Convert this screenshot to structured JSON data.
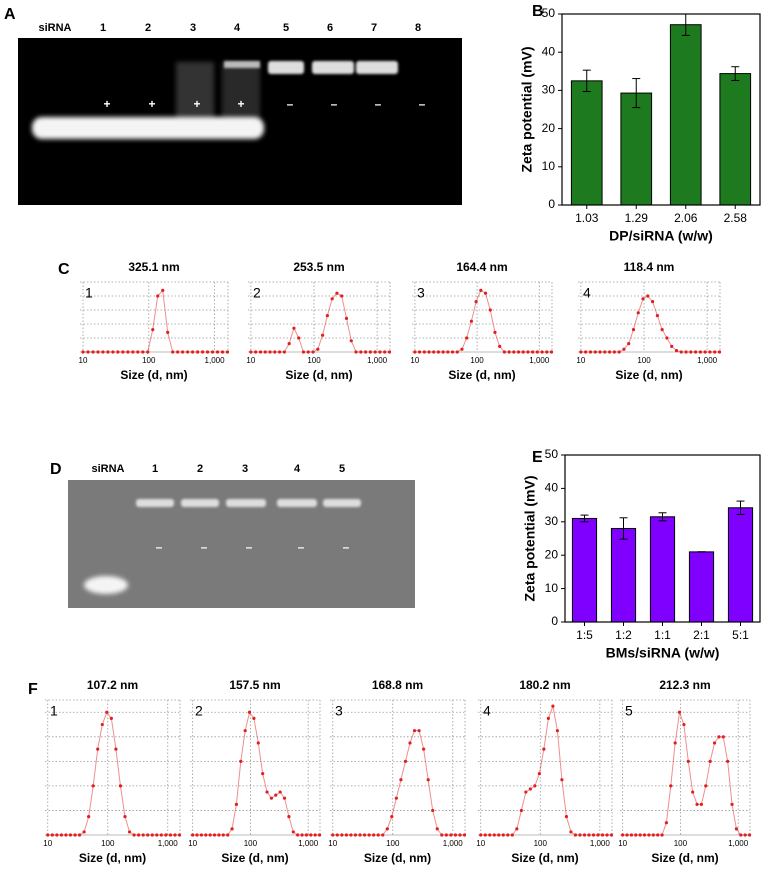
{
  "panel_labels": [
    "A",
    "B",
    "C",
    "D",
    "E",
    "F"
  ],
  "gel_a": {
    "lanes": [
      "siRNA",
      "1",
      "2",
      "3",
      "4",
      "5",
      "6",
      "7",
      "8"
    ],
    "charges": [
      "+",
      "+",
      "+",
      "+",
      "–",
      "–",
      "–",
      "–"
    ]
  },
  "gel_d": {
    "lanes": [
      "siRNA",
      "1",
      "2",
      "3",
      "4",
      "5"
    ],
    "charges": [
      "–",
      "–",
      "–",
      "–",
      "–"
    ]
  },
  "chart_data": [
    {
      "type": "bar",
      "categories": [
        "1.03",
        "1.29",
        "2.06",
        "2.58"
      ],
      "values": [
        32.5,
        29.3,
        47.2,
        34.4
      ],
      "errors": [
        2.8,
        3.8,
        2.8,
        1.8
      ],
      "color": "#1e7a1e",
      "ylabel": "Zeta potential (mV)",
      "xlabel": "DP/siRNA (w/w)",
      "ylim": [
        0,
        50
      ],
      "yticks": [
        0,
        10,
        20,
        30,
        40,
        50
      ]
    },
    {
      "type": "bar",
      "categories": [
        "1:5",
        "1:2",
        "1:1",
        "2:1",
        "5:1"
      ],
      "values": [
        31,
        28,
        31.5,
        21,
        34.2
      ],
      "errors": [
        1,
        3.2,
        1.2,
        0,
        2
      ],
      "color": "#8000ff",
      "ylabel": "Zeta potential (mV)",
      "xlabel": "BMs/siRNA (w/w)",
      "ylim": [
        0,
        50
      ],
      "yticks": [
        0,
        10,
        20,
        30,
        40,
        50
      ]
    },
    {
      "type": "line",
      "title": "325.1 nm",
      "annotation": "1",
      "xlabel": "Size (d, nm)",
      "xscale": "log",
      "xlim": [
        9,
        1600
      ],
      "xticks": [
        10,
        100,
        {
          "value": 1000,
          "label": "1,000"
        }
      ],
      "ylim": [
        0,
        25
      ],
      "yticks": [
        5,
        10,
        15,
        20
      ],
      "grid": true,
      "x": [
        10,
        11.9,
        14.2,
        16.9,
        20.1,
        23.9,
        28.5,
        33.9,
        40.4,
        48.1,
        57.2,
        68.1,
        81.1,
        96.5,
        114.9,
        136.8,
        162.9,
        193.9,
        230.8,
        274.8,
        327.1,
        389.5,
        463.6,
        552,
        657.1,
        782.3,
        931.3,
        1108.8,
        1320,
        1571.5
      ],
      "series": [
        {
          "color": "#e02020",
          "values": [
            0,
            0,
            0,
            0,
            0,
            0,
            0,
            0,
            0,
            0,
            0,
            0,
            0,
            0,
            8,
            20,
            22,
            7,
            0,
            0,
            0,
            0,
            0,
            0,
            0,
            0,
            0,
            0,
            0,
            0
          ]
        }
      ]
    },
    {
      "type": "line",
      "title": "253.5 nm",
      "annotation": "2",
      "xlabel": "Size (d, nm)",
      "xscale": "log",
      "xlim": [
        9,
        1600
      ],
      "xticks": [
        10,
        100,
        {
          "value": 1000,
          "label": "1,000"
        }
      ],
      "ylim": [
        0,
        25
      ],
      "yticks": [
        5,
        10,
        15,
        20
      ],
      "grid": true,
      "x": [
        10,
        11.9,
        14.2,
        16.9,
        20.1,
        23.9,
        28.5,
        33.9,
        40.4,
        48.1,
        57.2,
        68.1,
        81.1,
        96.5,
        114.9,
        136.8,
        162.9,
        193.9,
        230.8,
        274.8,
        327.1,
        389.5,
        463.6,
        552,
        657.1,
        782.3,
        931.3,
        1108.8,
        1320,
        1571.5
      ],
      "series": [
        {
          "color": "#e02020",
          "values": [
            0,
            0,
            0,
            0,
            0,
            0,
            0,
            0,
            3,
            8.5,
            5,
            0,
            0,
            0,
            1,
            6,
            13,
            19,
            21,
            20,
            12,
            4,
            0,
            0,
            0,
            0,
            0,
            0,
            0,
            0
          ]
        }
      ]
    },
    {
      "type": "line",
      "title": "164.4 nm",
      "annotation": "3",
      "xlabel": "Size (d, nm)",
      "xscale": "log",
      "xlim": [
        9,
        1600
      ],
      "xticks": [
        10,
        100,
        {
          "value": 1000,
          "label": "1,000"
        }
      ],
      "ylim": [
        0,
        25
      ],
      "yticks": [
        5,
        10,
        15,
        20
      ],
      "grid": true,
      "x": [
        10,
        11.9,
        14.2,
        16.9,
        20.1,
        23.9,
        28.5,
        33.9,
        40.4,
        48.1,
        57.2,
        68.1,
        81.1,
        96.5,
        114.9,
        136.8,
        162.9,
        193.9,
        230.8,
        274.8,
        327.1,
        389.5,
        463.6,
        552,
        657.1,
        782.3,
        931.3,
        1108.8,
        1320,
        1571.5
      ],
      "series": [
        {
          "color": "#e02020",
          "values": [
            0,
            0,
            0,
            0,
            0,
            0,
            0,
            0,
            0,
            0,
            1,
            5,
            11,
            18,
            22,
            21,
            15,
            7,
            2,
            0,
            0,
            0,
            0,
            0,
            0,
            0,
            0,
            0,
            0,
            0
          ]
        }
      ]
    },
    {
      "type": "line",
      "title": "118.4 nm",
      "annotation": "4",
      "xlabel": "Size (d, nm)",
      "xscale": "log",
      "xlim": [
        9,
        1600
      ],
      "xticks": [
        10,
        100,
        {
          "value": 1000,
          "label": "1,000"
        }
      ],
      "ylim": [
        0,
        25
      ],
      "yticks": [
        5,
        10,
        15,
        20
      ],
      "grid": true,
      "x": [
        10,
        11.9,
        14.2,
        16.9,
        20.1,
        23.9,
        28.5,
        33.9,
        40.4,
        48.1,
        57.2,
        68.1,
        81.1,
        96.5,
        114.9,
        136.8,
        162.9,
        193.9,
        230.8,
        274.8,
        327.1,
        389.5,
        463.6,
        552,
        657.1,
        782.3,
        931.3,
        1108.8,
        1320,
        1571.5
      ],
      "series": [
        {
          "color": "#e02020",
          "values": [
            0,
            0,
            0,
            0,
            0,
            0,
            0,
            0,
            0,
            1,
            3,
            8,
            14,
            19,
            20,
            18,
            13,
            8,
            5,
            2,
            0.5,
            0,
            0,
            0,
            0,
            0,
            0,
            0,
            0,
            0
          ]
        }
      ]
    },
    {
      "type": "line",
      "title": "107.2 nm",
      "annotation": "1",
      "xlabel": "Size (d, nm)",
      "xscale": "log",
      "xlim": [
        9,
        1600
      ],
      "xticks": [
        10,
        100,
        {
          "value": 1000,
          "label": "1,000"
        }
      ],
      "ylim": [
        0,
        22
      ],
      "yticks": [
        4,
        8,
        12,
        16,
        20
      ],
      "grid": true,
      "x": [
        10,
        11.9,
        14.2,
        16.9,
        20.1,
        23.9,
        28.5,
        33.9,
        40.4,
        48.1,
        57.2,
        68.1,
        81.1,
        96.5,
        114.9,
        136.8,
        162.9,
        193.9,
        230.8,
        274.8,
        327.1,
        389.5,
        463.6,
        552,
        657.1,
        782.3,
        931.3,
        1108.8,
        1320,
        1571.5
      ],
      "series": [
        {
          "color": "#e02020",
          "values": [
            0,
            0,
            0,
            0,
            0,
            0,
            0,
            0,
            0.5,
            3,
            8,
            14,
            18,
            20,
            19,
            14,
            8,
            3,
            0.5,
            0,
            0,
            0,
            0,
            0,
            0,
            0,
            0,
            0,
            0,
            0
          ]
        }
      ]
    },
    {
      "type": "line",
      "title": "157.5 nm",
      "annotation": "2",
      "xlabel": "Size (d, nm)",
      "xscale": "log",
      "xlim": [
        9,
        1600
      ],
      "xticks": [
        10,
        100,
        {
          "value": 1000,
          "label": "1,000"
        }
      ],
      "ylim": [
        0,
        22
      ],
      "yticks": [
        4,
        8,
        12,
        16,
        20
      ],
      "grid": true,
      "x": [
        10,
        11.9,
        14.2,
        16.9,
        20.1,
        23.9,
        28.5,
        33.9,
        40.4,
        48.1,
        57.2,
        68.1,
        81.1,
        96.5,
        114.9,
        136.8,
        162.9,
        193.9,
        230.8,
        274.8,
        327.1,
        389.5,
        463.6,
        552,
        657.1,
        782.3,
        931.3,
        1108.8,
        1320,
        1571.5
      ],
      "series": [
        {
          "color": "#e02020",
          "values": [
            0,
            0,
            0,
            0,
            0,
            0,
            0,
            0,
            0,
            1,
            5,
            12,
            17,
            20,
            19,
            15,
            10,
            7,
            6,
            6.5,
            7,
            6,
            3,
            0.5,
            0,
            0,
            0,
            0,
            0,
            0
          ]
        }
      ]
    },
    {
      "type": "line",
      "title": "168.8 nm",
      "annotation": "3",
      "xlabel": "Size (d, nm)",
      "xscale": "log",
      "xlim": [
        9,
        1600
      ],
      "xticks": [
        10,
        100,
        {
          "value": 1000,
          "label": "1,000"
        }
      ],
      "ylim": [
        0,
        22
      ],
      "yticks": [
        4,
        8,
        12,
        16,
        20
      ],
      "grid": true,
      "x": [
        10,
        11.9,
        14.2,
        16.9,
        20.1,
        23.9,
        28.5,
        33.9,
        40.4,
        48.1,
        57.2,
        68.1,
        81.1,
        96.5,
        114.9,
        136.8,
        162.9,
        193.9,
        230.8,
        274.8,
        327.1,
        389.5,
        463.6,
        552,
        657.1,
        782.3,
        931.3,
        1108.8,
        1320,
        1571.5
      ],
      "series": [
        {
          "color": "#e02020",
          "values": [
            0,
            0,
            0,
            0,
            0,
            0,
            0,
            0,
            0,
            0,
            0,
            0,
            1,
            3,
            6,
            9,
            12,
            15,
            17,
            17,
            14,
            9,
            4,
            1,
            0,
            0,
            0,
            0,
            0,
            0
          ]
        }
      ]
    },
    {
      "type": "line",
      "title": "180.2 nm",
      "annotation": "4",
      "xlabel": "Size (d, nm)",
      "xscale": "log",
      "xlim": [
        9,
        1600
      ],
      "xticks": [
        10,
        100,
        {
          "value": 1000,
          "label": "1,000"
        }
      ],
      "ylim": [
        0,
        22
      ],
      "yticks": [
        4,
        8,
        12,
        16,
        20
      ],
      "grid": true,
      "x": [
        10,
        11.9,
        14.2,
        16.9,
        20.1,
        23.9,
        28.5,
        33.9,
        40.4,
        48.1,
        57.2,
        68.1,
        81.1,
        96.5,
        114.9,
        136.8,
        162.9,
        193.9,
        230.8,
        274.8,
        327.1,
        389.5,
        463.6,
        552,
        657.1,
        782.3,
        931.3,
        1108.8,
        1320,
        1571.5
      ],
      "series": [
        {
          "color": "#e02020",
          "values": [
            0,
            0,
            0,
            0,
            0,
            0,
            0,
            0,
            1,
            4,
            7,
            7.5,
            8,
            10,
            14,
            19,
            21,
            17,
            9,
            3,
            0.5,
            0,
            0,
            0,
            0,
            0,
            0,
            0,
            0,
            0
          ]
        }
      ]
    },
    {
      "type": "line",
      "title": "212.3 nm",
      "annotation": "5",
      "xlabel": "Size (d, nm)",
      "xscale": "log",
      "xlim": [
        9,
        1600
      ],
      "xticks": [
        10,
        100,
        {
          "value": 1000,
          "label": "1,000"
        }
      ],
      "ylim": [
        0,
        22
      ],
      "yticks": [
        4,
        8,
        12,
        16,
        20
      ],
      "grid": true,
      "x": [
        10,
        11.9,
        14.2,
        16.9,
        20.1,
        23.9,
        28.5,
        33.9,
        40.4,
        48.1,
        57.2,
        68.1,
        81.1,
        96.5,
        114.9,
        136.8,
        162.9,
        193.9,
        230.8,
        274.8,
        327.1,
        389.5,
        463.6,
        552,
        657.1,
        782.3,
        931.3,
        1108.8,
        1320,
        1571.5
      ],
      "series": [
        {
          "color": "#e02020",
          "values": [
            0,
            0,
            0,
            0,
            0,
            0,
            0,
            0,
            0,
            0,
            2,
            8,
            15,
            20,
            18,
            12,
            7,
            5,
            5,
            8,
            12,
            15,
            16,
            16,
            12,
            5,
            1,
            0,
            0,
            0
          ]
        }
      ]
    }
  ]
}
